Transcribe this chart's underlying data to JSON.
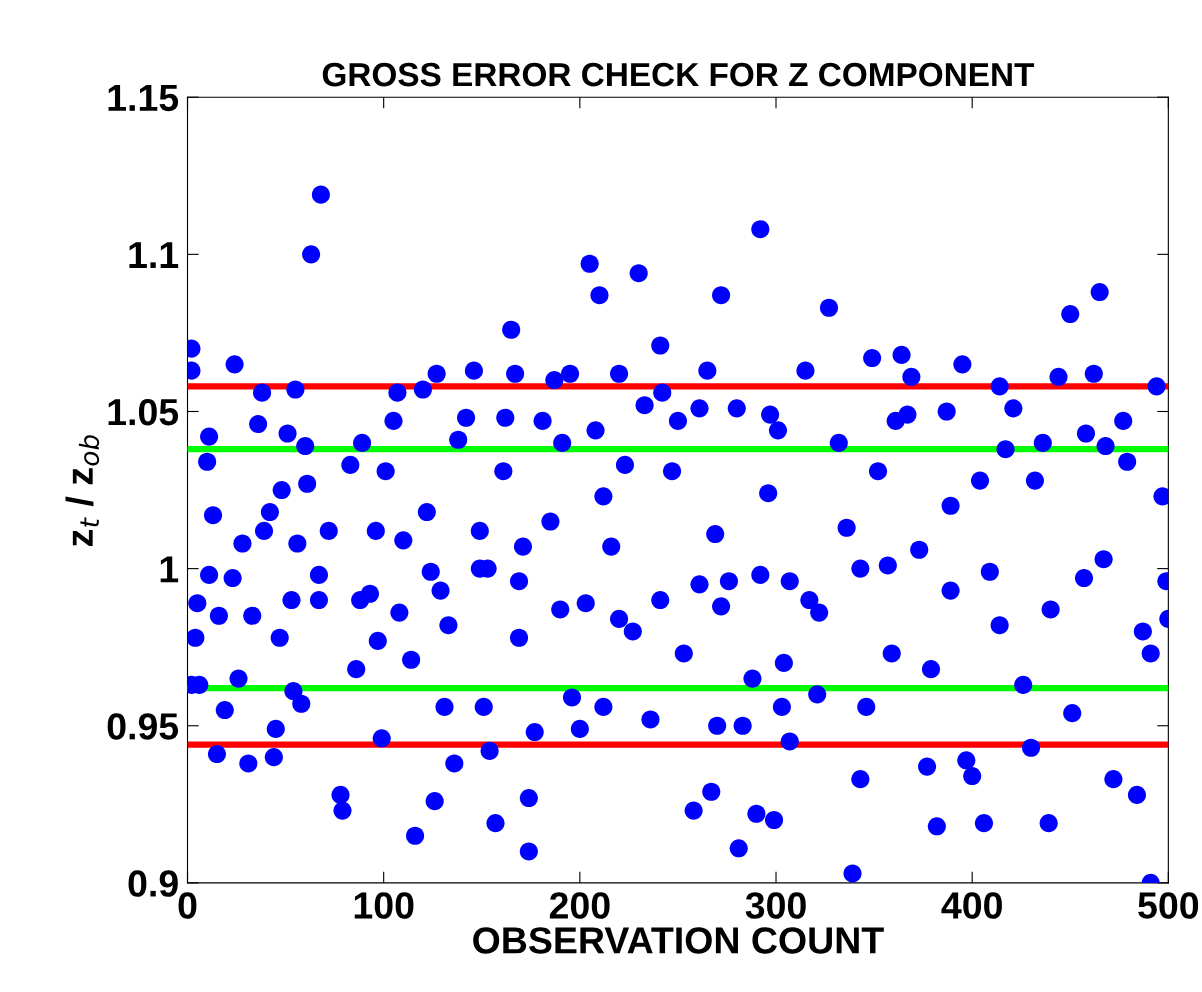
{
  "chart_data": {
    "type": "scatter",
    "title": "GROSS ERROR CHECK FOR Z COMPONENT",
    "xlabel": "OBSERVATION COUNT",
    "ylabel": "z$_{t}$ / z$_{ob}$",
    "xlim": [
      0,
      500
    ],
    "ylim": [
      0.9,
      1.15
    ],
    "xticks": [
      0,
      100,
      200,
      300,
      400,
      500
    ],
    "yticks": [
      0.9,
      0.95,
      1,
      1.05,
      1.1,
      1.15
    ],
    "grid": false,
    "marker": "circle",
    "ref_lines": [
      {
        "axis": "y",
        "value": 1.058,
        "color": "#ff0000"
      },
      {
        "axis": "y",
        "value": 1.038,
        "color": "#00ff00"
      },
      {
        "axis": "y",
        "value": 0.962,
        "color": "#00ff00"
      },
      {
        "axis": "y",
        "value": 0.944,
        "color": "#ff0000"
      }
    ],
    "series": [
      {
        "color": "#0000ff",
        "x": [
          2,
          2,
          5,
          4,
          2,
          6,
          11,
          10,
          11,
          13,
          15,
          16,
          19,
          24,
          23,
          26,
          28,
          31,
          33,
          36,
          38,
          39,
          42,
          44,
          45,
          47,
          48,
          51,
          53,
          55,
          56,
          58,
          60,
          61,
          63,
          68,
          67,
          72,
          78,
          79,
          83,
          86,
          89,
          93,
          96,
          97,
          99,
          101,
          105,
          107,
          110,
          114,
          116,
          120,
          122,
          124,
          126,
          127,
          131,
          133,
          136,
          138,
          142,
          146,
          149,
          151,
          154,
          153,
          157,
          161,
          162,
          165,
          167,
          169,
          171,
          174,
          174,
          177,
          181,
          185,
          187,
          191,
          195,
          196,
          200,
          203,
          205,
          208,
          210,
          212,
          212,
          216,
          220,
          223,
          227,
          230,
          233,
          236,
          241,
          242,
          247,
          250,
          253,
          258,
          261,
          265,
          269,
          267,
          272,
          272,
          270,
          280,
          281,
          283,
          288,
          290,
          292,
          296,
          297,
          299,
          301,
          303,
          304,
          307,
          315,
          317,
          321,
          327,
          332,
          336,
          339,
          343,
          346,
          349,
          352,
          357,
          361,
          364,
          367,
          369,
          373,
          377,
          379,
          382,
          387,
          389,
          395,
          397,
          400,
          404,
          406,
          409,
          414,
          417,
          421,
          426,
          430,
          432,
          436,
          439,
          444,
          450,
          451,
          458,
          462,
          465,
          468,
          472,
          477,
          479,
          484,
          491,
          494,
          497,
          499,
          500,
          491,
          487,
          467,
          457,
          440,
          414,
          389,
          359,
          343,
          322,
          307,
          292,
          276,
          261,
          241,
          220,
          190,
          169,
          149,
          129,
          108,
          88,
          67,
          54
        ],
        "values": [
          1.063,
          1.07,
          0.989,
          0.978,
          0.963,
          0.963,
          1.042,
          1.034,
          0.998,
          1.017,
          0.941,
          0.985,
          0.955,
          1.065,
          0.997,
          0.965,
          1.008,
          0.938,
          0.985,
          1.046,
          1.056,
          1.012,
          1.018,
          0.94,
          0.949,
          0.978,
          1.025,
          1.043,
          0.99,
          1.057,
          1.008,
          0.957,
          1.039,
          1.027,
          1.1,
          1.119,
          0.99,
          1.012,
          0.928,
          0.923,
          1.033,
          0.968,
          1.04,
          0.992,
          1.012,
          0.977,
          0.946,
          1.031,
          1.047,
          1.056,
          1.009,
          0.971,
          0.915,
          1.057,
          1.018,
          0.999,
          0.926,
          1.062,
          0.956,
          0.982,
          0.938,
          1.041,
          1.048,
          1.063,
          1.012,
          0.956,
          0.942,
          1.0,
          0.919,
          1.031,
          1.048,
          1.076,
          1.062,
          0.978,
          1.007,
          0.91,
          0.927,
          0.948,
          1.047,
          1.015,
          1.06,
          1.04,
          1.062,
          0.959,
          0.949,
          0.989,
          1.097,
          1.044,
          1.087,
          1.023,
          0.956,
          1.007,
          1.062,
          1.033,
          0.98,
          1.094,
          1.052,
          0.952,
          1.071,
          1.056,
          1.031,
          1.047,
          0.973,
          0.923,
          1.051,
          1.063,
          1.011,
          0.929,
          1.087,
          0.988,
          0.95,
          1.051,
          0.911,
          0.95,
          0.965,
          0.922,
          1.108,
          1.024,
          1.049,
          0.92,
          1.044,
          0.956,
          0.97,
          0.945,
          1.063,
          0.99,
          0.96,
          1.083,
          1.04,
          1.013,
          0.903,
          0.933,
          0.956,
          1.067,
          1.031,
          1.001,
          1.047,
          1.068,
          1.049,
          1.061,
          1.006,
          0.937,
          0.968,
          0.918,
          1.05,
          1.02,
          1.065,
          0.939,
          0.934,
          1.028,
          0.919,
          0.999,
          1.058,
          1.038,
          1.051,
          0.963,
          0.943,
          1.028,
          1.04,
          0.919,
          1.061,
          1.081,
          0.954,
          1.043,
          1.062,
          1.088,
          1.039,
          0.933,
          1.047,
          1.034,
          0.928,
          0.9,
          1.058,
          1.023,
          0.996,
          0.984,
          0.973,
          0.98,
          1.003,
          0.997,
          0.987,
          0.982,
          0.993,
          0.973,
          1.0,
          0.986,
          0.996,
          0.998,
          0.996,
          0.995,
          0.99,
          0.984,
          0.987,
          0.996,
          1.0,
          0.993,
          0.986,
          0.99,
          0.998,
          0.961
        ]
      }
    ]
  }
}
